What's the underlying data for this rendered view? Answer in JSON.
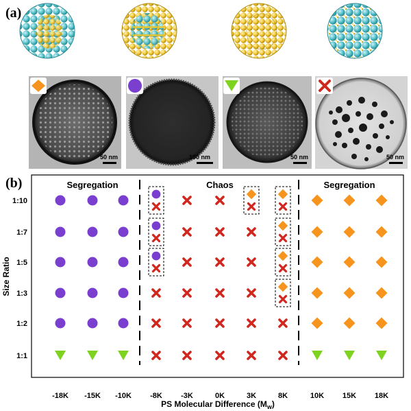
{
  "figure": {
    "panel_a_label": "(a)",
    "panel_b_label": "(b)"
  },
  "panel_a": {
    "structures": [
      {
        "name": "sphere-cyan-shell-yellow-core",
        "shell": "#5ec7cf",
        "core": "#f2c23a"
      },
      {
        "name": "sphere-yellow-shell-cyan-core",
        "shell": "#f0c728",
        "core": "#5ec7cf"
      },
      {
        "name": "sphere-yellow-full",
        "shell": "#f0c728",
        "core": "#f0c728"
      },
      {
        "name": "sphere-mixed",
        "shell": "#5ec7cf",
        "core": "#f0c728"
      }
    ],
    "micrographs": [
      {
        "marker": "diamond",
        "scale_bar": "50 nm"
      },
      {
        "marker": "circle",
        "scale_bar": "100 nm"
      },
      {
        "marker": "triangle",
        "scale_bar": "50 nm"
      },
      {
        "marker": "cross",
        "scale_bar": "50 nm"
      }
    ]
  },
  "chart_data": {
    "type": "scatter",
    "xlabel": "PS Molecular Difference (M",
    "xlabel_subscript": "w",
    "xlabel_close": ")",
    "ylabel": "Size Ratio",
    "x_categories": [
      "-18K",
      "-15K",
      "-10K",
      "-8K",
      "-3K",
      "0K",
      "3K",
      "8K",
      "10K",
      "15K",
      "18K"
    ],
    "y_categories": [
      "1:10",
      "1:7",
      "1:5",
      "1:3",
      "1:2",
      "1:1"
    ],
    "regions": [
      {
        "label": "Segregation",
        "span": [
          "-18K",
          "-10K"
        ]
      },
      {
        "label": "Chaos",
        "span": [
          "-8K",
          "8K"
        ]
      },
      {
        "label": "Segregation",
        "span": [
          "10K",
          "18K"
        ]
      }
    ],
    "marker_colors": {
      "circle": "#7b3fd0",
      "diamond": "#f7941d",
      "triangle": "#7ed321",
      "cross": "#d0281e"
    },
    "points": [
      {
        "x": "-18K",
        "y": "1:10",
        "marker": "circle"
      },
      {
        "x": "-15K",
        "y": "1:10",
        "marker": "circle"
      },
      {
        "x": "-10K",
        "y": "1:10",
        "marker": "circle"
      },
      {
        "x": "-8K",
        "y": "1:10",
        "markers": [
          "circle",
          "cross"
        ],
        "boxed": true
      },
      {
        "x": "-3K",
        "y": "1:10",
        "marker": "cross"
      },
      {
        "x": "0K",
        "y": "1:10",
        "marker": "cross"
      },
      {
        "x": "3K",
        "y": "1:10",
        "markers": [
          "diamond",
          "cross"
        ],
        "boxed": true
      },
      {
        "x": "8K",
        "y": "1:10",
        "markers": [
          "diamond",
          "cross"
        ],
        "boxed": true
      },
      {
        "x": "10K",
        "y": "1:10",
        "marker": "diamond"
      },
      {
        "x": "15K",
        "y": "1:10",
        "marker": "diamond"
      },
      {
        "x": "18K",
        "y": "1:10",
        "marker": "diamond"
      },
      {
        "x": "-18K",
        "y": "1:7",
        "marker": "circle"
      },
      {
        "x": "-15K",
        "y": "1:7",
        "marker": "circle"
      },
      {
        "x": "-10K",
        "y": "1:7",
        "marker": "circle"
      },
      {
        "x": "-8K",
        "y": "1:7",
        "markers": [
          "circle",
          "cross"
        ],
        "boxed": true
      },
      {
        "x": "-3K",
        "y": "1:7",
        "marker": "cross"
      },
      {
        "x": "0K",
        "y": "1:7",
        "marker": "cross"
      },
      {
        "x": "3K",
        "y": "1:7",
        "marker": "cross"
      },
      {
        "x": "8K",
        "y": "1:7",
        "markers": [
          "diamond",
          "cross"
        ],
        "boxed": true
      },
      {
        "x": "10K",
        "y": "1:7",
        "marker": "diamond"
      },
      {
        "x": "15K",
        "y": "1:7",
        "marker": "diamond"
      },
      {
        "x": "18K",
        "y": "1:7",
        "marker": "diamond"
      },
      {
        "x": "-18K",
        "y": "1:5",
        "marker": "circle"
      },
      {
        "x": "-15K",
        "y": "1:5",
        "marker": "circle"
      },
      {
        "x": "-10K",
        "y": "1:5",
        "marker": "circle"
      },
      {
        "x": "-8K",
        "y": "1:5",
        "markers": [
          "circle",
          "cross"
        ],
        "boxed": true
      },
      {
        "x": "-3K",
        "y": "1:5",
        "marker": "cross"
      },
      {
        "x": "0K",
        "y": "1:5",
        "marker": "cross"
      },
      {
        "x": "3K",
        "y": "1:5",
        "marker": "cross"
      },
      {
        "x": "8K",
        "y": "1:5",
        "markers": [
          "diamond",
          "cross"
        ],
        "boxed": true
      },
      {
        "x": "10K",
        "y": "1:5",
        "marker": "diamond"
      },
      {
        "x": "15K",
        "y": "1:5",
        "marker": "diamond"
      },
      {
        "x": "18K",
        "y": "1:5",
        "marker": "diamond"
      },
      {
        "x": "-18K",
        "y": "1:3",
        "marker": "circle"
      },
      {
        "x": "-15K",
        "y": "1:3",
        "marker": "circle"
      },
      {
        "x": "-10K",
        "y": "1:3",
        "marker": "circle"
      },
      {
        "x": "-8K",
        "y": "1:3",
        "marker": "cross"
      },
      {
        "x": "-3K",
        "y": "1:3",
        "marker": "cross"
      },
      {
        "x": "0K",
        "y": "1:3",
        "marker": "cross"
      },
      {
        "x": "3K",
        "y": "1:3",
        "marker": "cross"
      },
      {
        "x": "8K",
        "y": "1:3",
        "markers": [
          "diamond",
          "cross"
        ],
        "boxed": true
      },
      {
        "x": "10K",
        "y": "1:3",
        "marker": "diamond"
      },
      {
        "x": "15K",
        "y": "1:3",
        "marker": "diamond"
      },
      {
        "x": "18K",
        "y": "1:3",
        "marker": "diamond"
      },
      {
        "x": "-18K",
        "y": "1:2",
        "marker": "circle"
      },
      {
        "x": "-15K",
        "y": "1:2",
        "marker": "circle"
      },
      {
        "x": "-10K",
        "y": "1:2",
        "marker": "circle"
      },
      {
        "x": "-8K",
        "y": "1:2",
        "marker": "cross"
      },
      {
        "x": "-3K",
        "y": "1:2",
        "marker": "cross"
      },
      {
        "x": "0K",
        "y": "1:2",
        "marker": "cross"
      },
      {
        "x": "3K",
        "y": "1:2",
        "marker": "cross"
      },
      {
        "x": "8K",
        "y": "1:2",
        "marker": "cross"
      },
      {
        "x": "10K",
        "y": "1:2",
        "marker": "diamond"
      },
      {
        "x": "15K",
        "y": "1:2",
        "marker": "diamond"
      },
      {
        "x": "18K",
        "y": "1:2",
        "marker": "diamond"
      },
      {
        "x": "-18K",
        "y": "1:1",
        "marker": "triangle"
      },
      {
        "x": "-15K",
        "y": "1:1",
        "marker": "triangle"
      },
      {
        "x": "-10K",
        "y": "1:1",
        "marker": "triangle"
      },
      {
        "x": "-8K",
        "y": "1:1",
        "marker": "cross"
      },
      {
        "x": "-3K",
        "y": "1:1",
        "marker": "cross"
      },
      {
        "x": "0K",
        "y": "1:1",
        "marker": "cross"
      },
      {
        "x": "3K",
        "y": "1:1",
        "marker": "cross"
      },
      {
        "x": "8K",
        "y": "1:1",
        "marker": "cross"
      },
      {
        "x": "10K",
        "y": "1:1",
        "marker": "triangle"
      },
      {
        "x": "15K",
        "y": "1:1",
        "marker": "triangle"
      },
      {
        "x": "18K",
        "y": "1:1",
        "marker": "triangle"
      }
    ]
  }
}
